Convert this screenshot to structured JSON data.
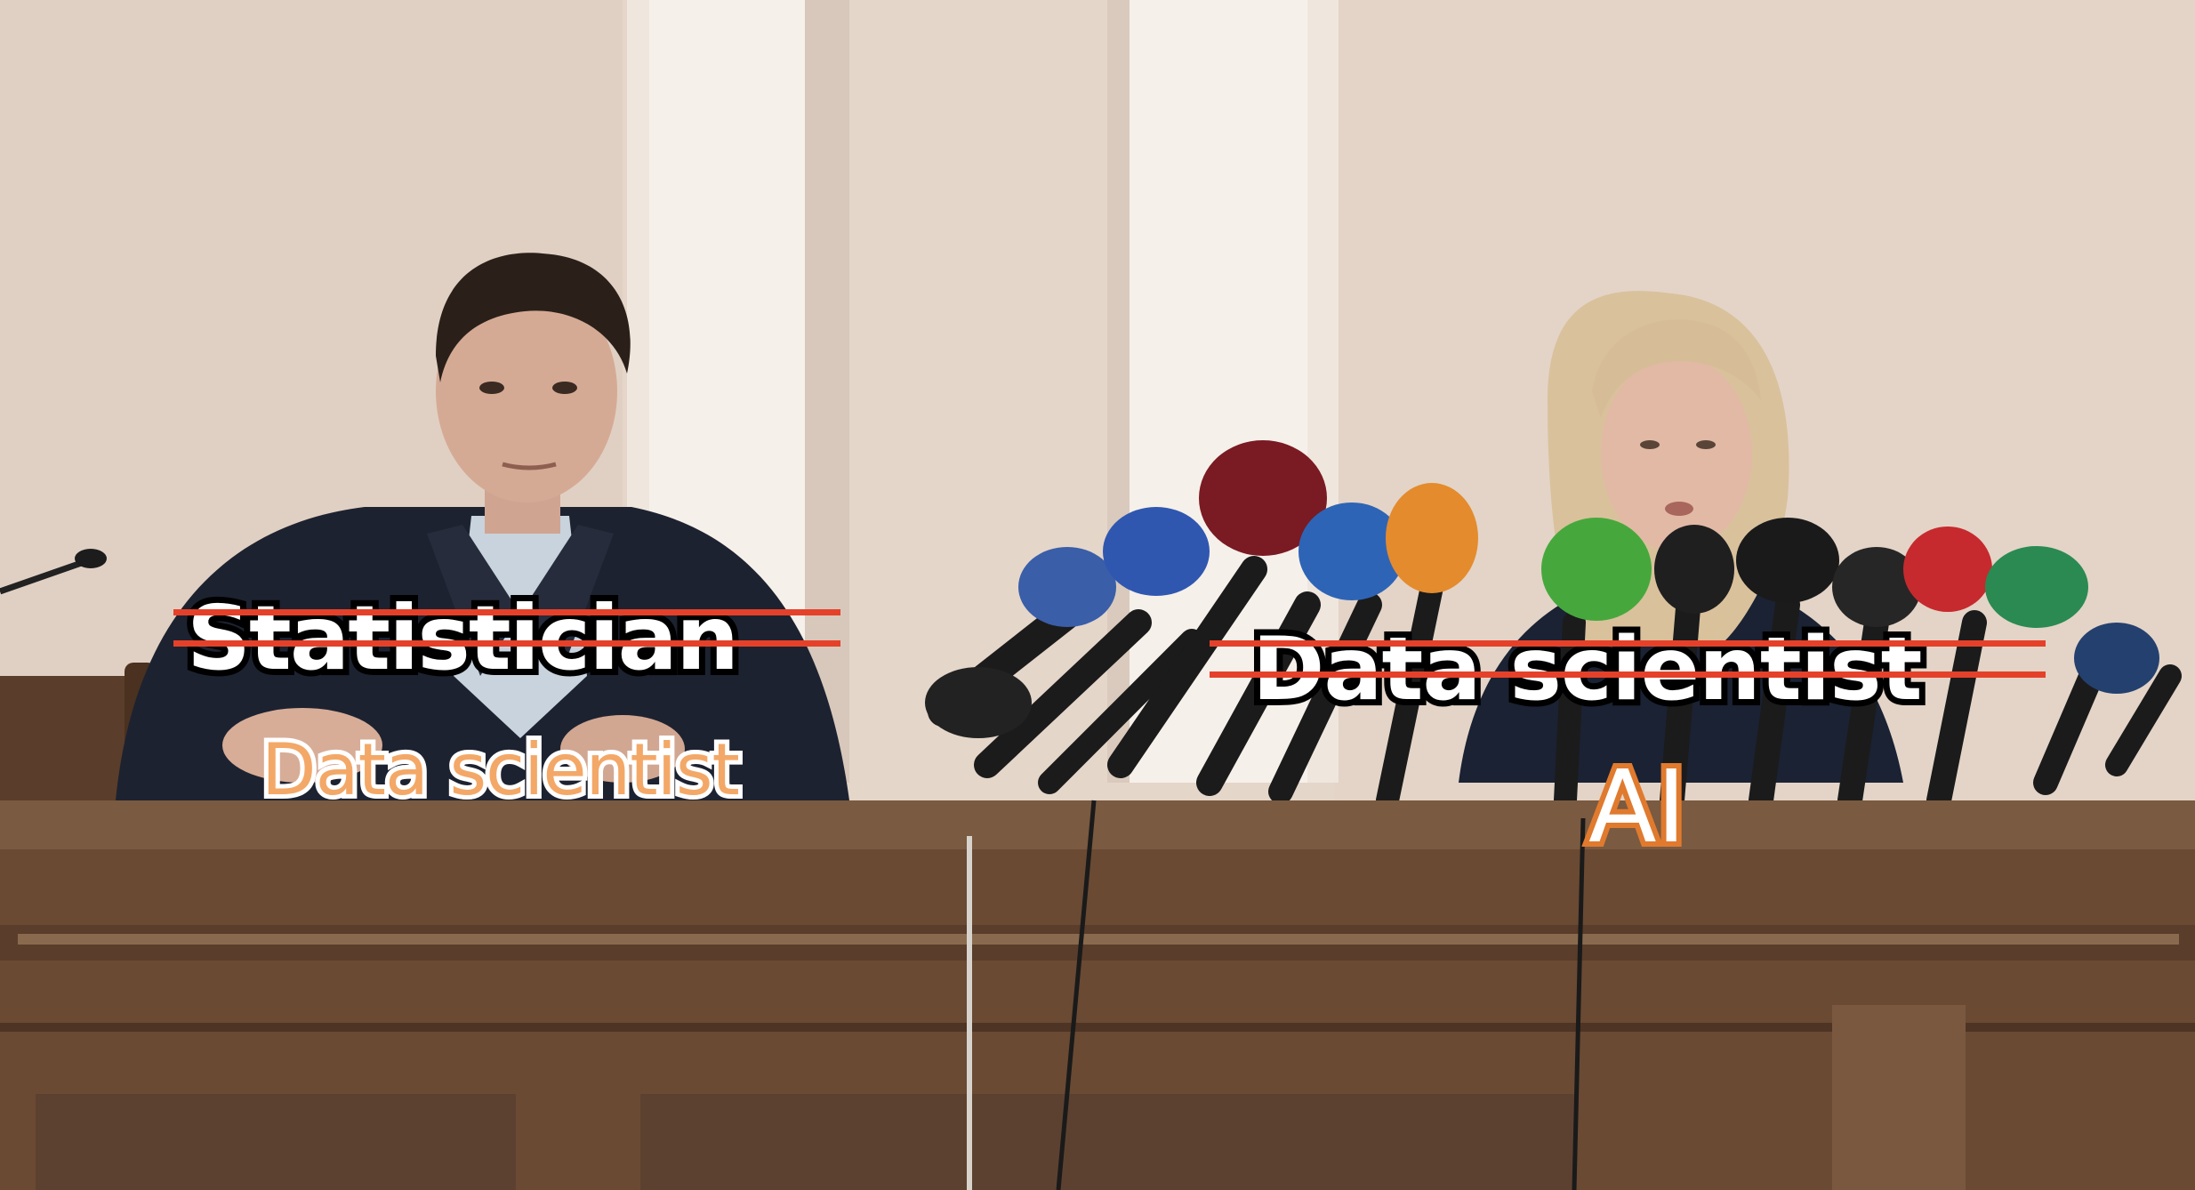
{
  "captions": {
    "statistician": "Statistician",
    "data_scientist_crossed": "Data scientist",
    "data_scientist_new": "Data scientist",
    "ai": "AI"
  },
  "colors": {
    "wall": "#e6d8cc",
    "pillar": "#f3ece6",
    "desk": "#6e4e36",
    "strike": "#e5412a",
    "orange_text": "#f3a868",
    "ai_outline": "#e07a2e"
  }
}
